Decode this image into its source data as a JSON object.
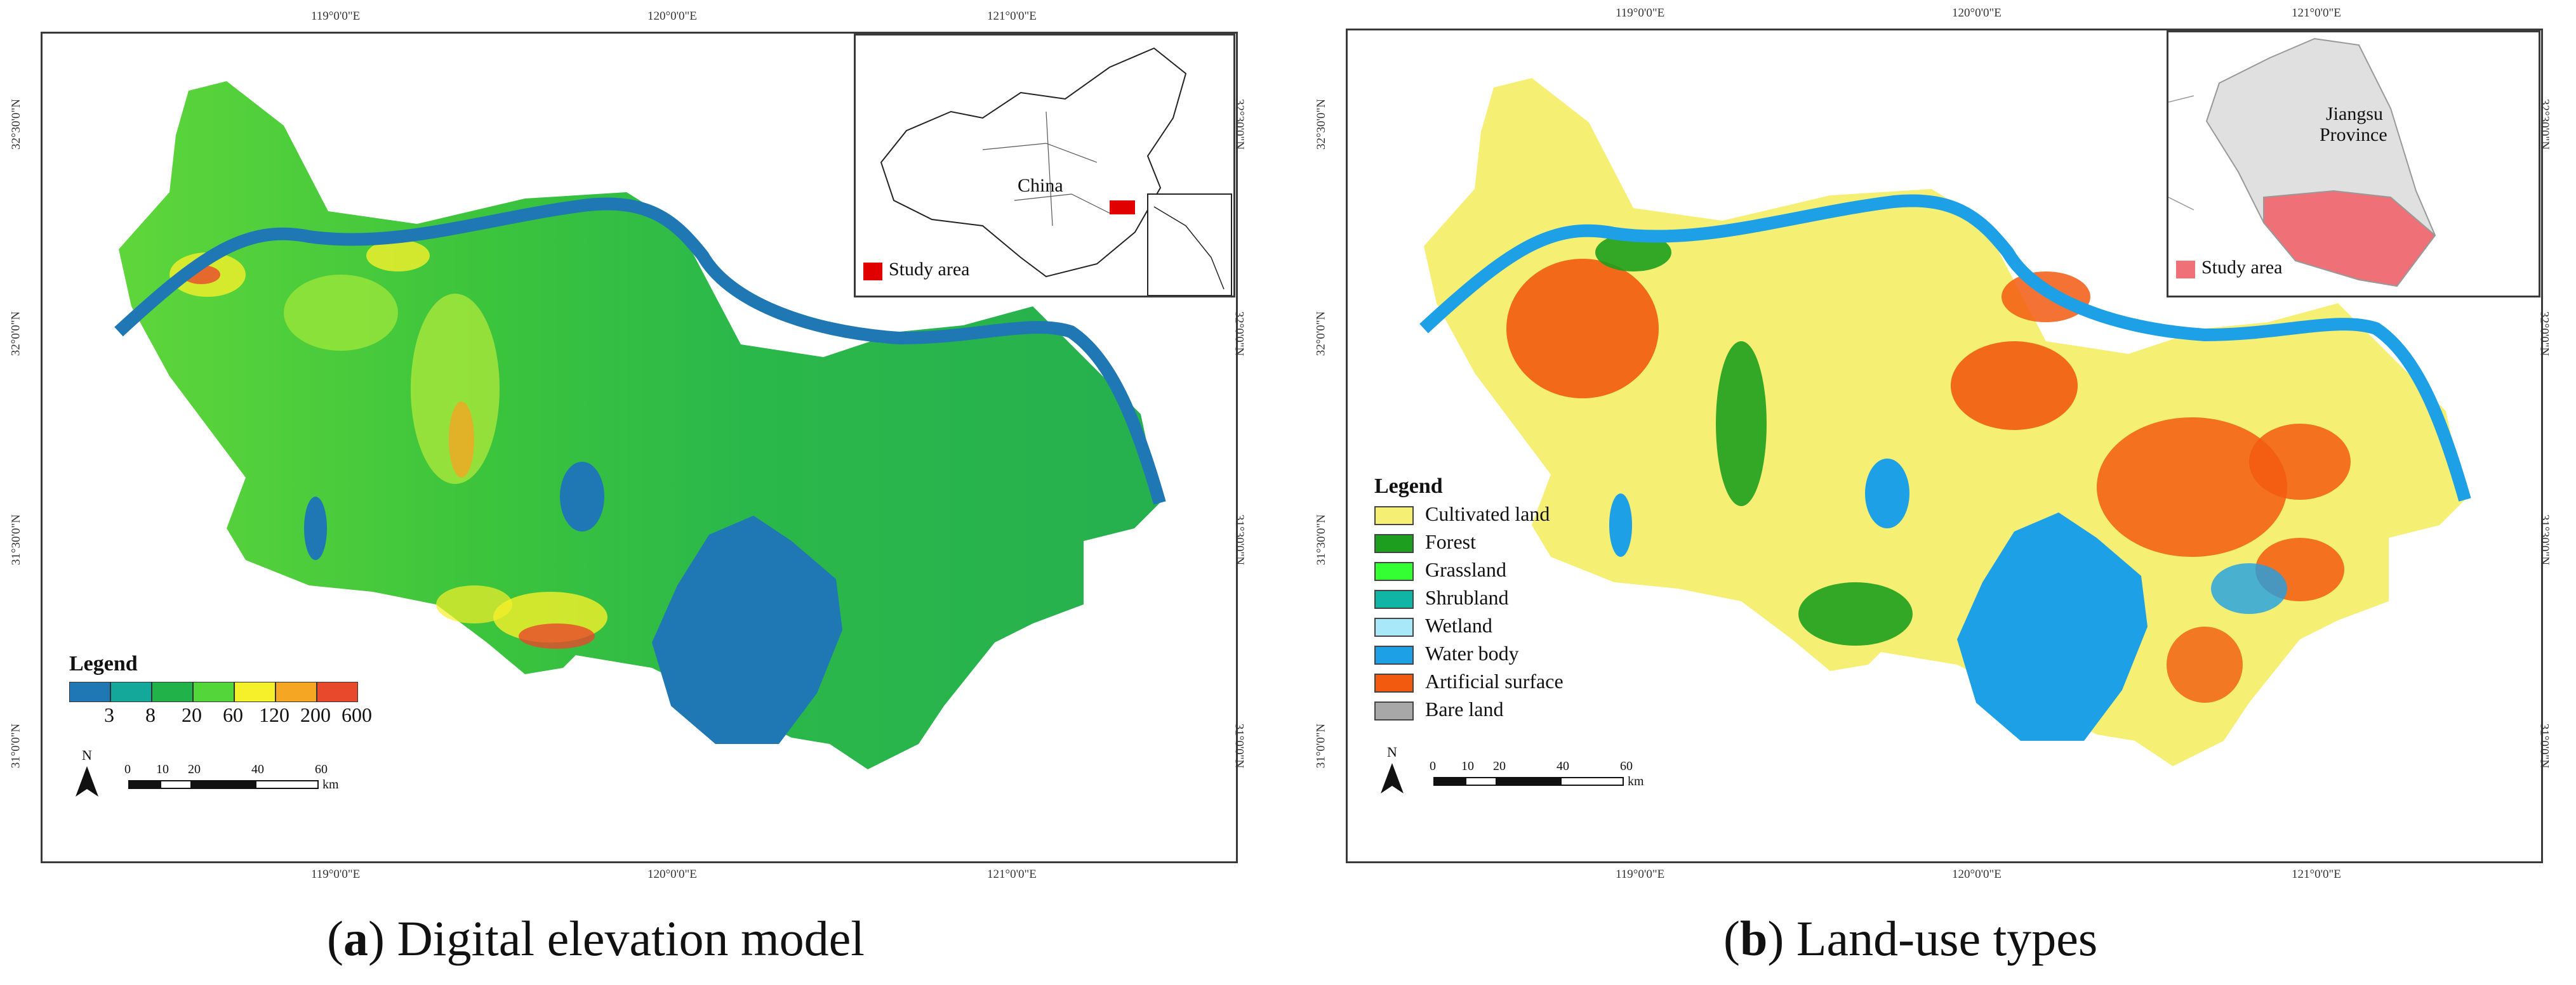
{
  "panels": [
    {
      "id": "a",
      "caption_letter": "a",
      "caption_text": "Digital elevation model",
      "inset_label": "China",
      "inset_legend": "Study area",
      "legend_title": "Legend",
      "legend_values": [
        "3",
        "8",
        "20",
        "60",
        "120",
        "200",
        "600"
      ],
      "legend_colors": [
        "#1f78b4",
        "#14a89a",
        "#22b24a",
        "#52d63a",
        "#f6f02a",
        "#f5a623",
        "#e8492c"
      ]
    },
    {
      "id": "b",
      "caption_letter": "b",
      "caption_text": "Land-use types",
      "inset_label_1": "Jiangsu",
      "inset_label_2": "Province",
      "inset_legend": "Study area",
      "legend_title": "Legend",
      "legend_classes": [
        {
          "label": "Cultivated land",
          "color": "#f5ef74"
        },
        {
          "label": "Forest",
          "color": "#1e9e1e"
        },
        {
          "label": "Grassland",
          "color": "#33ff33"
        },
        {
          "label": "Shrubland",
          "color": "#10b5a5"
        },
        {
          "label": "Wetland",
          "color": "#a8e8f8"
        },
        {
          "label": "Water body",
          "color": "#1ea0e6"
        },
        {
          "label": "Artificial surface",
          "color": "#f25a10"
        },
        {
          "label": "Bare land",
          "color": "#a8a8a8"
        }
      ]
    }
  ],
  "axes": {
    "lon_ticks": [
      "119°0'0\"E",
      "120°0'0\"E",
      "121°0'0\"E"
    ],
    "lat_ticks": [
      "32°30'0\"N",
      "32°0'0\"N",
      "31°30'0\"N",
      "31°0'0\"N"
    ]
  },
  "scale_bar": {
    "labels": [
      "0",
      "10",
      "20",
      "40",
      "60"
    ],
    "unit": "km",
    "north": "N"
  }
}
